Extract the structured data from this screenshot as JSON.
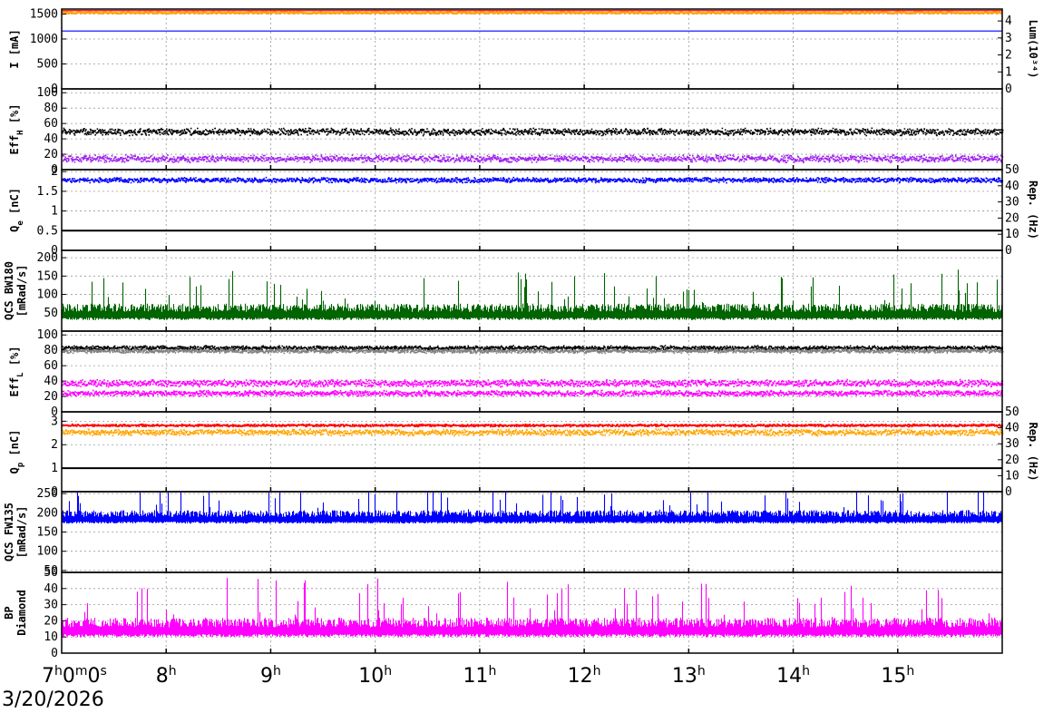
{
  "chart_data": {
    "type": "multi-panel-timeseries",
    "date_label": "3/20/2026",
    "x_axis": {
      "start_hour": 7,
      "end_hour": 16,
      "ticks": [
        {
          "base": "7",
          "sup": "h",
          "base2": "0",
          "sup2": "m",
          "base3": "0",
          "sup3": "s"
        },
        {
          "base": "8",
          "sup": "h"
        },
        {
          "base": "9",
          "sup": "h"
        },
        {
          "base": "10",
          "sup": "h"
        },
        {
          "base": "11",
          "sup": "h"
        },
        {
          "base": "12",
          "sup": "h"
        },
        {
          "base": "13",
          "sup": "h"
        },
        {
          "base": "14",
          "sup": "h"
        },
        {
          "base": "15",
          "sup": "h"
        }
      ]
    },
    "panels": [
      {
        "id": "current",
        "ylabel": "I [mA]",
        "ylabel_sub": "",
        "ylim": [
          0,
          1600
        ],
        "yticks": [
          "0",
          "500",
          "1000",
          "1500"
        ],
        "ytick_values": [
          0,
          500,
          1000,
          1500
        ],
        "right_ylabel": "Lum(10³⁴)",
        "right_ylim": [
          0,
          4.7
        ],
        "right_yticks": [
          "0",
          "1",
          "2",
          "3",
          "4"
        ],
        "right_ytick_values": [
          0,
          1,
          2,
          3,
          4
        ],
        "series": [
          {
            "color": "#ffa500",
            "kind": "band",
            "base": 1525,
            "spread": 25
          },
          {
            "color": "#ff0000",
            "kind": "line",
            "base": 1568
          },
          {
            "color": "#0000ff",
            "kind": "line",
            "base": 1160
          }
        ]
      },
      {
        "id": "effh",
        "ylabel": "Eff",
        "ylabel_sub": "H",
        "ylabel_suffix": " [%]",
        "ylim": [
          0,
          105
        ],
        "yticks": [
          "0",
          "20",
          "40",
          "60",
          "80",
          "100"
        ],
        "ytick_values": [
          0,
          20,
          40,
          60,
          80,
          100
        ],
        "series": [
          {
            "color": "#000000",
            "kind": "scatter",
            "base": 50,
            "spread": 5
          },
          {
            "color": "#a020f0",
            "kind": "scatter",
            "base": 15,
            "spread": 5
          }
        ]
      },
      {
        "id": "qe",
        "ylabel": "Q",
        "ylabel_sub": "e",
        "ylabel_suffix": " [nC]",
        "ylim": [
          0,
          2.05
        ],
        "yticks": [
          "0",
          "0.5",
          "1",
          "1.5",
          "2"
        ],
        "ytick_values": [
          0,
          0.5,
          1,
          1.5,
          2
        ],
        "right_ylabel": "Rep. (Hz)",
        "right_ylim": [
          0,
          50
        ],
        "right_yticks": [
          "0",
          "10",
          "20",
          "30",
          "40",
          "50"
        ],
        "right_ytick_values": [
          0,
          10,
          20,
          30,
          40,
          50
        ],
        "series": [
          {
            "color": "#0000ff",
            "kind": "scatter",
            "base": 1.8,
            "spread": 0.07
          },
          {
            "color": "#000000",
            "kind": "line",
            "base": 0.5
          }
        ]
      },
      {
        "id": "bw180",
        "ylabel": "QCS BW180",
        "ylabel2": "[mRad/s]",
        "ylim": [
          0,
          220
        ],
        "yticks": [
          "50",
          "100",
          "150",
          "200"
        ],
        "ytick_values": [
          50,
          100,
          150,
          200
        ],
        "series": [
          {
            "color": "#006400",
            "kind": "spiky",
            "base": 30,
            "spread": 45
          }
        ]
      },
      {
        "id": "effl",
        "ylabel": "Eff",
        "ylabel_sub": "L",
        "ylabel_suffix": " [%]",
        "ylim": [
          0,
          105
        ],
        "yticks": [
          "0",
          "20",
          "40",
          "60",
          "80",
          "100"
        ],
        "ytick_values": [
          0,
          20,
          40,
          60,
          80,
          100
        ],
        "series": [
          {
            "color": "#000000",
            "kind": "scatter",
            "base": 84,
            "spread": 3
          },
          {
            "color": "#808080",
            "kind": "scatter",
            "base": 80,
            "spread": 3
          },
          {
            "color": "#ff00ff",
            "kind": "scatter",
            "base": 38,
            "spread": 5
          },
          {
            "color": "#ff00ff",
            "kind": "scatter",
            "base": 25,
            "spread": 4
          }
        ]
      },
      {
        "id": "qp",
        "ylabel": "Q",
        "ylabel_sub": "p",
        "ylabel_suffix": " [nC]",
        "ylim": [
          0,
          3.4
        ],
        "yticks": [
          "0",
          "1",
          "2",
          "3"
        ],
        "ytick_values": [
          0,
          1,
          2,
          3
        ],
        "right_ylabel": "Rep. (Hz)",
        "right_ylim": [
          0,
          50
        ],
        "right_yticks": [
          "0",
          "10",
          "20",
          "30",
          "40",
          "50"
        ],
        "right_ytick_values": [
          0,
          10,
          20,
          30,
          40,
          50
        ],
        "series": [
          {
            "color": "#ffa500",
            "kind": "scatter",
            "base": 2.55,
            "spread": 0.15
          },
          {
            "color": "#ff0000",
            "kind": "scatter",
            "base": 2.85,
            "spread": 0.06
          },
          {
            "color": "#000000",
            "kind": "line",
            "base": 1.0
          }
        ]
      },
      {
        "id": "fw135",
        "ylabel": "QCS FW135",
        "ylabel2": "[mRad/s]",
        "ylim": [
          45,
          255
        ],
        "yticks": [
          "50",
          "100",
          "150",
          "200",
          "250"
        ],
        "ytick_values": [
          50,
          100,
          150,
          200,
          250
        ],
        "series": [
          {
            "color": "#0000ff",
            "kind": "spiky",
            "base": 172,
            "spread": 35
          }
        ]
      },
      {
        "id": "bp",
        "ylabel": "BP",
        "ylabel2": "Diamond",
        "ylim": [
          0,
          50
        ],
        "yticks": [
          "0",
          "10",
          "20",
          "30",
          "40",
          "50"
        ],
        "ytick_values": [
          0,
          10,
          20,
          30,
          40,
          50
        ],
        "series": [
          {
            "color": "#ff00ff",
            "kind": "spiky",
            "base": 10,
            "spread": 12
          }
        ]
      }
    ]
  }
}
